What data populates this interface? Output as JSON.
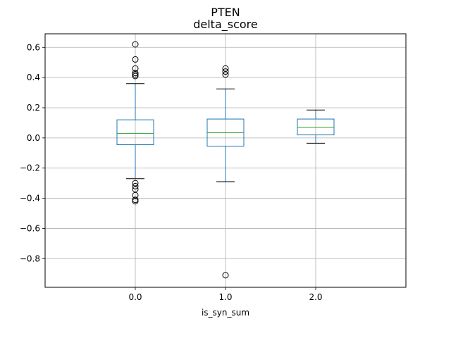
{
  "chart_data": {
    "type": "boxplot",
    "suptitle": "PTEN",
    "title": "delta_score",
    "xlabel": "is_syn_sum",
    "ylabel": "",
    "categories": [
      "0.0",
      "1.0",
      "2.0"
    ],
    "ylim": [
      -0.99,
      0.69
    ],
    "yticks": [
      -0.8,
      -0.6,
      -0.4,
      -0.2,
      0.0,
      0.2,
      0.4,
      0.6
    ],
    "ytick_labels": [
      "−0.8",
      "−0.6",
      "−0.4",
      "−0.2",
      "0.0",
      "0.2",
      "0.4",
      "0.6"
    ],
    "grid": true,
    "boxes": [
      {
        "category": "0.0",
        "whisker_low": -0.27,
        "q1": -0.045,
        "median": 0.03,
        "q3": 0.12,
        "whisker_high": 0.36,
        "outliers": [
          0.62,
          0.52,
          0.46,
          0.43,
          0.42,
          0.41,
          -0.3,
          -0.32,
          -0.34,
          -0.38,
          -0.41,
          -0.42
        ]
      },
      {
        "category": "1.0",
        "whisker_low": -0.29,
        "q1": -0.055,
        "median": 0.035,
        "q3": 0.125,
        "whisker_high": 0.325,
        "outliers": [
          0.46,
          0.44,
          0.42,
          -0.91
        ]
      },
      {
        "category": "2.0",
        "whisker_low": -0.035,
        "q1": 0.02,
        "median": 0.07,
        "q3": 0.125,
        "whisker_high": 0.185,
        "outliers": []
      }
    ],
    "colors": {
      "box": "#1f77b4",
      "median": "#2ca02c",
      "whisker_cap": "#000000",
      "grid": "#b0b0b0"
    }
  }
}
